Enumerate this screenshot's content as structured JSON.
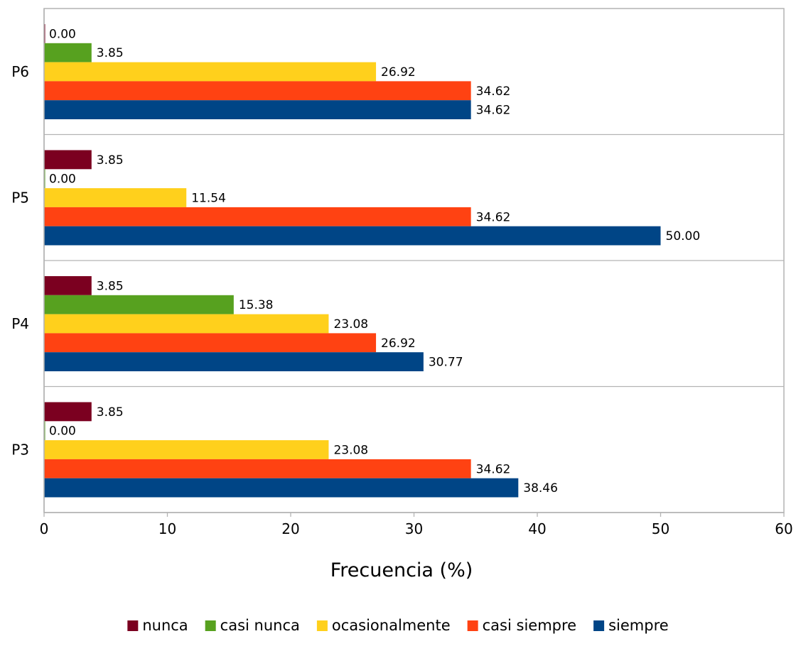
{
  "chart_data": {
    "type": "bar",
    "orientation": "horizontal",
    "categories": [
      "P6",
      "P5",
      "P4",
      "P3"
    ],
    "series": [
      {
        "name": "nunca",
        "color": "#7b0020",
        "values": [
          0.0,
          3.85,
          3.85,
          3.85
        ]
      },
      {
        "name": "casi nunca",
        "color": "#57a11f",
        "values": [
          3.85,
          0.0,
          15.38,
          0.0
        ]
      },
      {
        "name": "ocasionalmente",
        "color": "#ffd01c",
        "values": [
          26.92,
          11.54,
          23.08,
          23.08
        ]
      },
      {
        "name": "casi siempre",
        "color": "#ff4212",
        "values": [
          34.62,
          34.62,
          26.92,
          34.62
        ]
      },
      {
        "name": "siempre",
        "color": "#004586",
        "values": [
          34.62,
          50.0,
          30.77,
          38.46
        ]
      }
    ],
    "data_labels": [
      [
        "0.00",
        "3.85",
        "26.92",
        "34.62",
        "34.62"
      ],
      [
        "3.85",
        "0.00",
        "11.54",
        "34.62",
        "50.00"
      ],
      [
        "3.85",
        "15.38",
        "23.08",
        "26.92",
        "30.77"
      ],
      [
        "3.85",
        "0.00",
        "23.08",
        "34.62",
        "38.46"
      ]
    ],
    "xlabel": "Frecuencia (%)",
    "ylabel": "",
    "xlim": [
      0,
      60
    ],
    "xticks": [
      0,
      10,
      20,
      30,
      40,
      50,
      60
    ],
    "xtick_labels": [
      "0",
      "10",
      "20",
      "30",
      "40",
      "50",
      "60"
    ],
    "grid": "horizontal separators between categories",
    "legend_position": "bottom"
  }
}
